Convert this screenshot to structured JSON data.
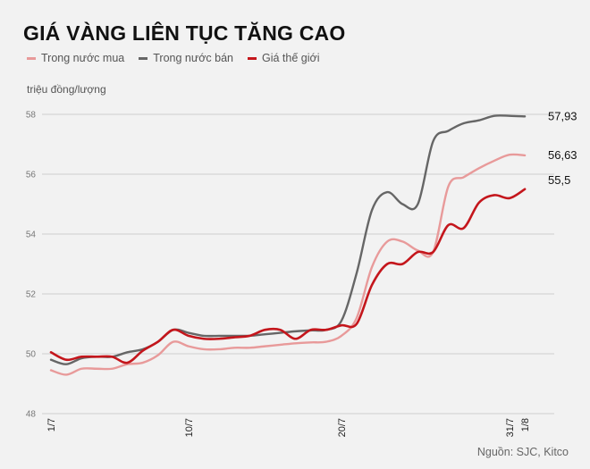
{
  "header": {
    "title": "GIÁ VÀNG LIÊN TỤC TĂNG CAO",
    "unit_label": "triệu đồng/lượng"
  },
  "legend": [
    {
      "label": "Trong nước mua",
      "color": "#e89a9a"
    },
    {
      "label": "Trong nước bán",
      "color": "#666666"
    },
    {
      "label": "Giá thế giới",
      "color": "#c4161c"
    }
  ],
  "footer": {
    "source": "Nguồn: SJC, Kitco"
  },
  "chart_data": {
    "type": "line",
    "title": "GIÁ VÀNG LIÊN TỤC TĂNG CAO",
    "xlabel": "",
    "ylabel": "triệu đồng/lượng",
    "ylim": [
      48,
      58
    ],
    "yticks": [
      48,
      50,
      52,
      54,
      56,
      58
    ],
    "grid": true,
    "legend_position": "top",
    "x_tick_labels": [
      "1/7",
      "10/7",
      "20/7",
      "31/7",
      "1/8"
    ],
    "x": [
      "1/7",
      "2/7",
      "3/7",
      "4/7",
      "5/7",
      "6/7",
      "7/7",
      "8/7",
      "9/7",
      "10/7",
      "11/7",
      "12/7",
      "13/7",
      "14/7",
      "15/7",
      "16/7",
      "17/7",
      "18/7",
      "19/7",
      "20/7",
      "21/7",
      "22/7",
      "23/7",
      "24/7",
      "25/7",
      "26/7",
      "27/7",
      "28/7",
      "29/7",
      "30/7",
      "31/7",
      "1/8"
    ],
    "series": [
      {
        "name": "Trong nước mua",
        "color": "#e89a9a",
        "values": [
          49.45,
          49.3,
          49.5,
          49.5,
          49.5,
          49.65,
          49.7,
          49.95,
          50.4,
          50.25,
          50.15,
          50.15,
          50.2,
          50.2,
          50.25,
          50.3,
          50.35,
          50.38,
          50.4,
          50.6,
          51.2,
          52.9,
          53.75,
          53.75,
          53.45,
          53.4,
          55.6,
          55.9,
          56.2,
          56.45,
          56.65,
          56.63
        ]
      },
      {
        "name": "Trong nước bán",
        "color": "#666666",
        "values": [
          49.8,
          49.65,
          49.85,
          49.9,
          49.9,
          50.05,
          50.15,
          50.4,
          50.8,
          50.7,
          50.6,
          50.6,
          50.6,
          50.6,
          50.65,
          50.7,
          50.75,
          50.78,
          50.8,
          51.1,
          52.7,
          54.8,
          55.4,
          55.0,
          55.0,
          57.1,
          57.45,
          57.7,
          57.8,
          57.95,
          57.95,
          57.93
        ]
      },
      {
        "name": "Giá thế giới",
        "color": "#c4161c",
        "values": [
          50.05,
          49.8,
          49.9,
          49.9,
          49.9,
          49.7,
          50.1,
          50.4,
          50.8,
          50.6,
          50.5,
          50.5,
          50.55,
          50.6,
          50.8,
          50.8,
          50.5,
          50.8,
          50.8,
          50.95,
          51.0,
          52.3,
          53.0,
          53.0,
          53.4,
          53.4,
          54.3,
          54.2,
          55.05,
          55.3,
          55.2,
          55.5
        ]
      }
    ],
    "end_labels": [
      "56,63",
      "57,93",
      "55,5"
    ]
  }
}
